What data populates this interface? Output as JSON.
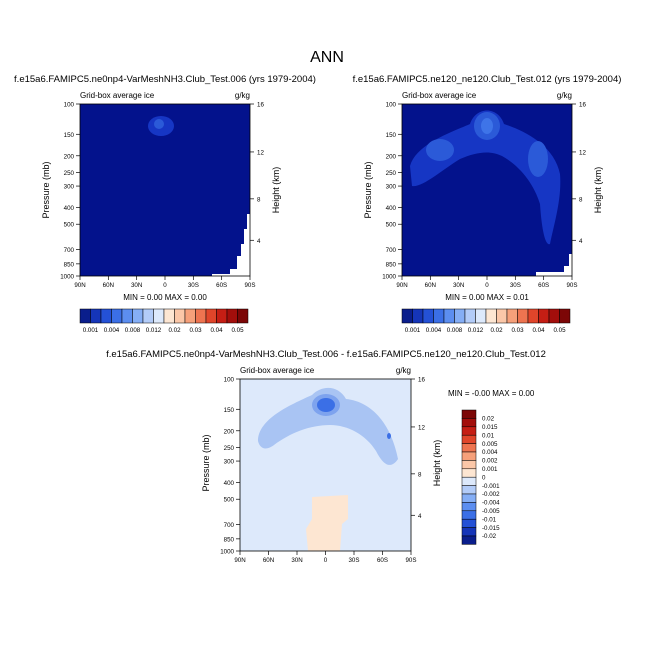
{
  "page_title": "ANN",
  "panels": [
    {
      "title": "f.e15a6.FAMIPC5.ne0np4-VarMeshNH3.Club_Test.006 (yrs 1979-2004)",
      "left_label": "Grid-box average ice",
      "right_label": "g/kg",
      "ylabel": "Pressure (mb)",
      "ylabel_right": "Height (km)",
      "minmax": "MIN =  0.00  MAX =  0.00"
    },
    {
      "title": "f.e15a6.FAMIPC5.ne120_ne120.Club_Test.012 (yrs 1979-2004)",
      "left_label": "Grid-box average ice",
      "right_label": "g/kg",
      "ylabel": "Pressure (mb)",
      "ylabel_right": "Height (km)",
      "minmax": "MIN =  0.00  MAX =  0.01"
    },
    {
      "title": "f.e15a6.FAMIPC5.ne0np4-VarMeshNH3.Club_Test.006 - f.e15a6.FAMIPC5.ne120_ne120.Club_Test.012",
      "left_label": "Grid-box average ice",
      "right_label": "g/kg",
      "ylabel": "Pressure (mb)",
      "ylabel_right": "Height (km)",
      "minmax": "MIN = -0.00  MAX =  0.00"
    }
  ],
  "chart_data": [
    {
      "type": "heatmap",
      "title": "f.e15a6.FAMIPC5.ne0np4-VarMeshNH3.Club_Test.006 (yrs 1979-2004)",
      "x_ticks": [
        "90N",
        "60N",
        "30N",
        "0",
        "30S",
        "60S",
        "90S"
      ],
      "y_ticks": [
        "100",
        "150",
        "200",
        "250",
        "300",
        "400",
        "500",
        "700",
        "850",
        "1000"
      ],
      "y_ticks_right": [
        "16",
        "12",
        "8",
        "4"
      ],
      "ylim": [
        1000,
        100
      ],
      "xlim": [
        90,
        -90
      ],
      "min": 0.0,
      "max": 0.0
    },
    {
      "type": "heatmap",
      "title": "f.e15a6.FAMIPC5.ne120_ne120.Club_Test.012 (yrs 1979-2004)",
      "x_ticks": [
        "90N",
        "60N",
        "30N",
        "0",
        "30S",
        "60S",
        "90S"
      ],
      "y_ticks": [
        "100",
        "150",
        "200",
        "250",
        "300",
        "400",
        "500",
        "700",
        "850",
        "1000"
      ],
      "y_ticks_right": [
        "16",
        "12",
        "8",
        "4"
      ],
      "ylim": [
        1000,
        100
      ],
      "xlim": [
        90,
        -90
      ],
      "min": 0.0,
      "max": 0.01
    },
    {
      "type": "heatmap",
      "title": "f.e15a6.FAMIPC5.ne0np4-VarMeshNH3.Club_Test.006 - f.e15a6.FAMIPC5.ne120_ne120.Club_Test.012",
      "x_ticks": [
        "90N",
        "60N",
        "30N",
        "0",
        "30S",
        "60S",
        "90S"
      ],
      "y_ticks": [
        "100",
        "150",
        "200",
        "250",
        "300",
        "400",
        "500",
        "700",
        "850",
        "1000"
      ],
      "y_ticks_right": [
        "16",
        "12",
        "8",
        "4"
      ],
      "ylim": [
        1000,
        100
      ],
      "xlim": [
        90,
        -90
      ],
      "min": -0.0,
      "max": 0.0
    }
  ],
  "colorbar_top": {
    "labels": [
      "0.001",
      "0.004",
      "0.008",
      "0.012",
      "0.02",
      "0.03",
      "0.04",
      "0.05"
    ],
    "colors": [
      "#0a1e8c",
      "#1535b8",
      "#2451d6",
      "#3b6fe6",
      "#5c8ef0",
      "#85aef5",
      "#b3ccf8",
      "#dde9fb",
      "#fde6d2",
      "#fbc7a8",
      "#f6a07a",
      "#ee7450",
      "#e0452a",
      "#c51e14",
      "#a30e0b",
      "#7c0606"
    ]
  },
  "colorbar_diff": {
    "labels": [
      "0.02",
      "0.015",
      "0.01",
      "0.005",
      "0.004",
      "0.002",
      "0.001",
      "0",
      "-0.001",
      "-0.002",
      "-0.004",
      "-0.005",
      "-0.01",
      "-0.015",
      "-0.02"
    ],
    "colors": [
      "#7c0606",
      "#a30e0b",
      "#c51e14",
      "#e0452a",
      "#ee7450",
      "#f6a07a",
      "#fbc7a8",
      "#fde6d2",
      "#dde9fb",
      "#b3ccf8",
      "#85aef5",
      "#5c8ef0",
      "#3b6fe6",
      "#2451d6",
      "#1535b8",
      "#0a1e8c"
    ]
  },
  "field_colors": {
    "navy": "#03128c",
    "dark_blue": "#1636c4",
    "mid_blue": "#2b5ad8",
    "light_blue": "#3e74e8",
    "diff_bg": "#dde9fb",
    "diff_blue": "#a9c4f3",
    "diff_blue2": "#7ea3ee",
    "diff_dark": "#3b6fe6",
    "diff_orange": "#fde6d2"
  }
}
